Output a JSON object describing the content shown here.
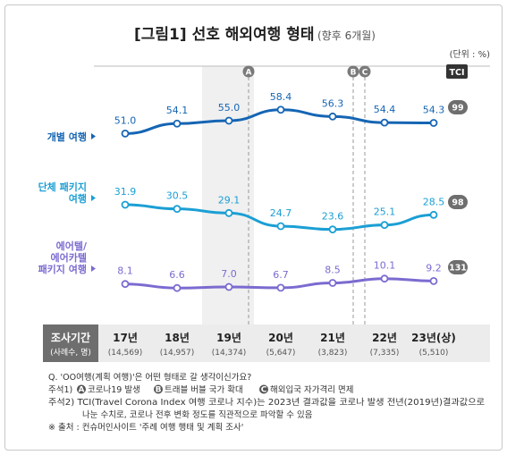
{
  "title": "[그림1] 선호 해외여행 형태",
  "subtitle": "(향후 6개월)",
  "unit": "(단위 : %)",
  "tci_label": "TCI",
  "survey_label": "조사기간",
  "survey_sublabel": "(사례수, 명)",
  "chart_data": {
    "type": "line",
    "categories": [
      "17년",
      "18년",
      "19년",
      "20년",
      "21년",
      "22년",
      "23년(상)"
    ],
    "sample_sizes": [
      "(14,569)",
      "(14,957)",
      "(14,374)",
      "(5,647)",
      "(3,823)",
      "(7,335)",
      "(5,510)"
    ],
    "series": [
      {
        "name": "개별 여행",
        "values": [
          51.0,
          54.1,
          55.0,
          58.4,
          56.3,
          54.4,
          54.3
        ],
        "labels": [
          "51.0",
          "54.1",
          "55.0",
          "58.4",
          "56.3",
          "54.4",
          "54.3"
        ],
        "tci": "99",
        "color": "#1565b4"
      },
      {
        "name": "단체 패키지 여행",
        "values": [
          31.9,
          30.5,
          29.1,
          24.7,
          23.6,
          25.1,
          28.5
        ],
        "labels": [
          "31.9",
          "30.5",
          "29.1",
          "24.7",
          "23.6",
          "25.1",
          "28.5"
        ],
        "tci": "98",
        "color": "#1b9fd4"
      },
      {
        "name": "에어텔/ 에어카텔 패키지 여행",
        "values": [
          8.1,
          6.6,
          7.0,
          6.7,
          8.5,
          10.1,
          9.2
        ],
        "labels": [
          "8.1",
          "6.6",
          "7.0",
          "6.7",
          "8.5",
          "10.1",
          "9.2"
        ],
        "tci": "131",
        "color": "#7b6bd0"
      }
    ],
    "annotations": [
      {
        "letter": "A",
        "position": "2020 start"
      },
      {
        "letter": "B",
        "position": "2022 mid-year"
      },
      {
        "letter": "C",
        "position": "2022 mid-year"
      }
    ]
  },
  "notes": {
    "q": "Q. 'OO여행(계획 여행)'은 어떤 형태로 갈 생각이신가요?",
    "n1_prefix": "주석1)",
    "n1_a": "코로나19 발생",
    "n1_b": "트래블 버블 국가 확대",
    "n1_c": "해외입국 자가격리 면제",
    "n2_line1": "주석2) TCI(Travel Corona Index 여행 코로나 지수)는 2023년 결과값을 코로나 발생 전년(2019년)결과값으로",
    "n2_line2": "나눈 수치로, 코로나 전후 변화 정도를 직관적으로 파악할 수 있음",
    "source": "※ 출처 : 컨슈머인사이트 '주례 여행 행태 및 계획 조사'"
  }
}
